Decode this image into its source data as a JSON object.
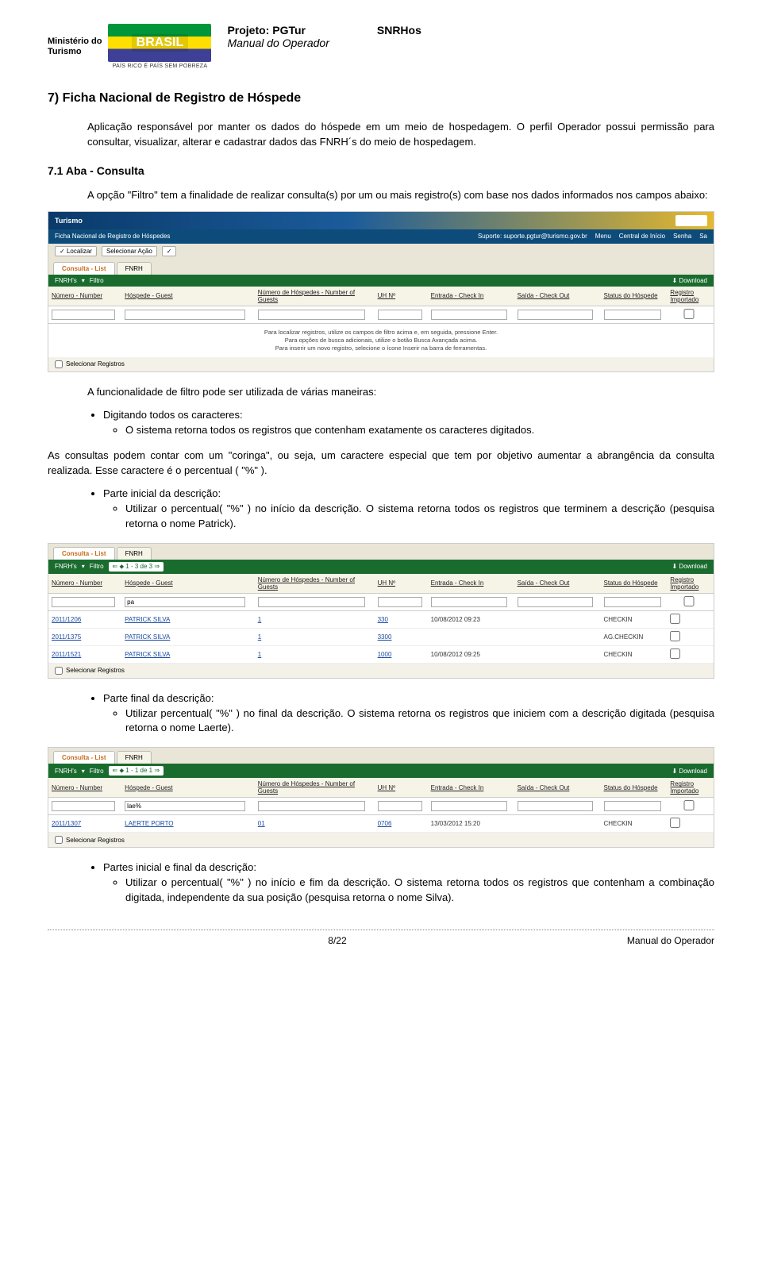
{
  "header": {
    "ministerio_line1": "Ministério do",
    "ministerio_line2": "Turismo",
    "brasil_logo": "BRASIL",
    "brasil_tag": "PAÍS RICO É PAÍS SEM POBREZA",
    "projeto_label": "Projeto: PGTur",
    "snrhos": "SNRHos",
    "manual": "Manual do Operador"
  },
  "section": {
    "title": "7)    Ficha Nacional de Registro de Hóspede",
    "p1": "Aplicação responsável por manter os dados do hóspede em um meio de hospedagem. O perfil Operador possui permissão para consultar, visualizar, alterar e cadastrar dados das FNRH´s do meio de hospedagem.",
    "sub": "7.1    Aba - Consulta",
    "p2": "A opção \"Filtro\" tem a finalidade de realizar consulta(s) por um ou mais registro(s) com base nos dados informados nos campos abaixo:",
    "p3": "A funcionalidade de filtro pode ser utilizada de várias maneiras:",
    "bullet1": "Digitando todos os caracteres:",
    "bullet1_sub": "O sistema retorna todos os registros que contenham exatamente os caracteres digitados.",
    "p4": "As consultas podem contar com um \"coringa\", ou seja, um caractere especial que tem por objetivo aumentar a abrangência da consulta realizada. Esse caractere é o percentual ( \"%\" ).",
    "bullet2": "Parte inicial da descrição:",
    "bullet2_sub": "Utilizar o percentual( \"%\" ) no início da descrição. O sistema retorna todos os registros que terminem a descrição (pesquisa retorna o nome Patrick).",
    "bullet3": "Parte final da descrição:",
    "bullet3_sub": "Utilizar percentual( \"%\" ) no final da descrição. O sistema retorna os registros que iniciem com a descrição digitada (pesquisa retorna o nome Laerte).",
    "bullet4": "Partes inicial e final da descrição:",
    "bullet4_sub": "Utilizar o percentual( \"%\" ) no início e fim da descrição. O sistema retorna todos os registros que contenham a combinação digitada, independente da sua posição (pesquisa retorna o nome Silva)."
  },
  "ss_common": {
    "brand": "Turismo",
    "subtitle": "Ficha Nacional de Registro de Hóspedes",
    "support": "Suporte: suporte.pgtur@turismo.gov.br",
    "menu": "Menu",
    "central": "Central de Início",
    "senha": "Senha",
    "sair": "Sa",
    "tab_consulta": "Consulta - List",
    "tab_fnrh": "FNRH",
    "localizar": "Localizar",
    "selecionar_acao": "Selecionar Ação",
    "fnrh_btn": "FNRH's",
    "filtro_btn": "Filtro",
    "download": "Download",
    "checkbox_label": "Selecionar Registros",
    "cols": {
      "numero": "Número - Number",
      "hospede": "Hóspede - Guest",
      "num_hospedes": "Número de Hóspedes - Number of Guests",
      "uh": "UH Nº",
      "entrada": "Entrada - Check In",
      "saida": "Saída - Check Out",
      "status": "Status do Hóspede",
      "registro": "Registro Importado"
    },
    "notice1": "Para localizar registros, utilize os campos de filtro acima e, em seguida, pressione Enter.",
    "notice2": "Para opções de busca adicionais, utilize o botão Busca Avançada acima.",
    "notice3": "Para inserir um novo registro, selecione o ícone Inserir na barra de ferramentas."
  },
  "ss2": {
    "counter": "1 - 3 de 3",
    "filter_val": "pa",
    "rows": [
      {
        "num": "2011/1206",
        "hosp": "PATRICK SILVA",
        "nh": "1",
        "uh": "330",
        "ent": "10/08/2012 09:23",
        "sai": "",
        "stat": "CHECKIN"
      },
      {
        "num": "2011/1375",
        "hosp": "PATRICK SILVA",
        "nh": "1",
        "uh": "3300",
        "ent": "",
        "sai": "",
        "stat": "AG.CHECKIN"
      },
      {
        "num": "2011/1521",
        "hosp": "PATRICK SILVA",
        "nh": "1",
        "uh": "1000",
        "ent": "10/08/2012 09:25",
        "sai": "",
        "stat": "CHECKIN"
      }
    ]
  },
  "ss3": {
    "counter": "1 - 1 de 1",
    "filter_val": "lae%",
    "rows": [
      {
        "num": "2011/1307",
        "hosp": "LAERTE PORTO",
        "nh": "01",
        "uh": "0706",
        "ent": "13/03/2012 15:20",
        "sai": "",
        "stat": "CHECKIN"
      }
    ]
  },
  "footer": {
    "page": "8/22",
    "doc": "Manual do Operador"
  }
}
